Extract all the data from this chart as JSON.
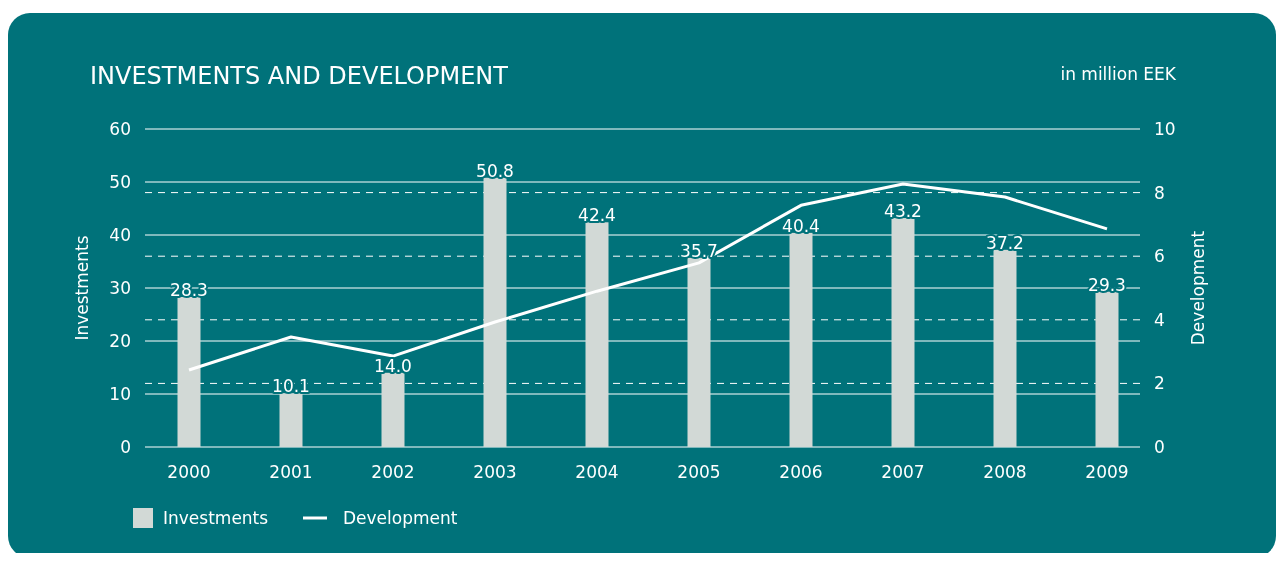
{
  "chart_data": {
    "type": "bar",
    "title": "INVESTMENTS AND DEVELOPMENT",
    "subtitle": "in million EEK",
    "ylabel": "Investments",
    "y2label": "Development",
    "categories": [
      "2000",
      "2001",
      "2002",
      "2003",
      "2004",
      "2005",
      "2006",
      "2007",
      "2008",
      "2009"
    ],
    "series": [
      {
        "name": "Investments",
        "color": "#d2d9d6",
        "values": [
          28.3,
          10.1,
          14.0,
          50.8,
          42.4,
          35.7,
          40.4,
          43.2,
          37.2,
          29.3
        ],
        "value_labels": [
          "28.3",
          "10.1",
          "14.0",
          "50.8",
          "42.4",
          "35.7",
          "40.4",
          "43.2",
          "37.2",
          "29.3"
        ]
      },
      {
        "name": "Development",
        "type": "line",
        "axis": "y2",
        "color": "#ffffff",
        "values": [
          2.42,
          3.46,
          2.86,
          3.93,
          4.9,
          5.79,
          7.6,
          8.27,
          7.86,
          6.86
        ]
      }
    ],
    "ylim": [
      0,
      60
    ],
    "yticks": [
      0,
      10,
      20,
      30,
      40,
      50,
      60
    ],
    "y2lim": [
      0,
      10
    ],
    "y2ticks": [
      0,
      2,
      4,
      6,
      8,
      10
    ],
    "grid": true,
    "legend": "bottom left",
    "marker": "none",
    "line_style": "solid"
  }
}
